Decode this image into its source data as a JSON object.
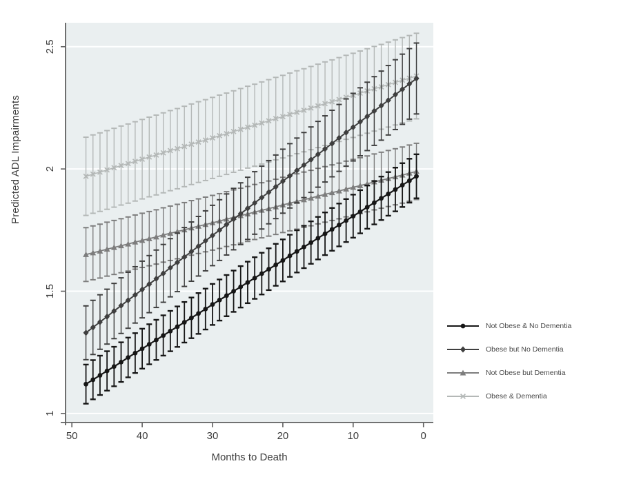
{
  "figure": {
    "background": "#ffffff",
    "plot_background": "#eaeff0",
    "gridline_color": "#ffffff",
    "axis_color": "#5f5f5f",
    "tick_text_color": "#3d3d3d"
  },
  "chart_data": {
    "type": "line",
    "title": "",
    "xlabel": "Months to Death",
    "ylabel": "Predicted ADL Impairments",
    "x_axis_reversed": true,
    "grid": "horizontal white gridlines at each y tick",
    "legend_position": "outside-right",
    "xlim": [
      50.9,
      -1.4
    ],
    "ylim": [
      0.963,
      2.598
    ],
    "x_ticks": [
      50,
      40,
      30,
      20,
      10,
      0
    ],
    "x_tick_labels": [
      "50",
      "40",
      "30",
      "20",
      "10",
      "0"
    ],
    "y_ticks": [
      1,
      1.5,
      2,
      2.5
    ],
    "y_tick_labels": [
      "1",
      "1.5",
      "2",
      "2.5"
    ],
    "months": [
      48,
      47,
      46,
      45,
      44,
      43,
      42,
      41,
      40,
      39,
      38,
      37,
      36,
      35,
      34,
      33,
      32,
      31,
      30,
      29,
      28,
      27,
      26,
      25,
      24,
      23,
      22,
      21,
      20,
      19,
      18,
      17,
      16,
      15,
      14,
      13,
      12,
      11,
      10,
      9,
      8,
      7,
      6,
      5,
      4,
      3,
      2,
      1
    ],
    "series": [
      {
        "name": "Not Obese & No Dementia",
        "marker": "circle",
        "color": "#161616",
        "line_width": 2.2,
        "ci_half_start": 0.08,
        "ci_half_end": 0.09,
        "values": [
          1.12,
          1.138,
          1.156,
          1.174,
          1.192,
          1.21,
          1.229,
          1.247,
          1.265,
          1.283,
          1.301,
          1.319,
          1.337,
          1.355,
          1.373,
          1.391,
          1.409,
          1.427,
          1.446,
          1.464,
          1.482,
          1.5,
          1.518,
          1.536,
          1.554,
          1.572,
          1.59,
          1.608,
          1.626,
          1.645,
          1.663,
          1.681,
          1.699,
          1.717,
          1.735,
          1.753,
          1.771,
          1.789,
          1.807,
          1.825,
          1.844,
          1.862,
          1.88,
          1.898,
          1.916,
          1.934,
          1.952,
          1.97
        ]
      },
      {
        "name": "Obese but No Dementia",
        "marker": "diamond",
        "color": "#3f3f3f",
        "line_width": 2.0,
        "ci_half_start": 0.11,
        "ci_half_end": 0.145,
        "values": [
          1.33,
          1.352,
          1.374,
          1.396,
          1.419,
          1.441,
          1.463,
          1.485,
          1.507,
          1.529,
          1.551,
          1.573,
          1.596,
          1.618,
          1.64,
          1.662,
          1.684,
          1.706,
          1.728,
          1.75,
          1.773,
          1.795,
          1.817,
          1.839,
          1.861,
          1.883,
          1.905,
          1.927,
          1.95,
          1.972,
          1.994,
          2.016,
          2.038,
          2.06,
          2.082,
          2.104,
          2.127,
          2.149,
          2.171,
          2.193,
          2.215,
          2.237,
          2.259,
          2.281,
          2.304,
          2.326,
          2.348,
          2.37
        ]
      },
      {
        "name": "Not Obese but Dementia",
        "marker": "triangle",
        "color": "#7d7d7d",
        "line_width": 1.8,
        "ci_half_start": 0.11,
        "ci_half_end": 0.115,
        "values": [
          1.65,
          1.657,
          1.664,
          1.672,
          1.679,
          1.686,
          1.693,
          1.701,
          1.708,
          1.715,
          1.722,
          1.73,
          1.737,
          1.744,
          1.751,
          1.759,
          1.766,
          1.773,
          1.78,
          1.787,
          1.795,
          1.802,
          1.809,
          1.816,
          1.824,
          1.831,
          1.838,
          1.845,
          1.853,
          1.86,
          1.867,
          1.874,
          1.881,
          1.889,
          1.896,
          1.903,
          1.91,
          1.918,
          1.925,
          1.932,
          1.939,
          1.947,
          1.954,
          1.961,
          1.968,
          1.975,
          1.983,
          1.99
        ]
      },
      {
        "name": "Obese & Dementia",
        "marker": "x",
        "color": "#b4b8b7",
        "line_width": 1.5,
        "ci_half_start": 0.16,
        "ci_half_end": 0.175,
        "values": [
          1.97,
          1.979,
          1.987,
          1.996,
          2.005,
          2.014,
          2.022,
          2.031,
          2.04,
          2.049,
          2.057,
          2.066,
          2.075,
          2.083,
          2.092,
          2.101,
          2.11,
          2.118,
          2.127,
          2.136,
          2.144,
          2.153,
          2.162,
          2.171,
          2.179,
          2.188,
          2.197,
          2.206,
          2.214,
          2.223,
          2.232,
          2.24,
          2.249,
          2.258,
          2.267,
          2.275,
          2.284,
          2.293,
          2.301,
          2.31,
          2.319,
          2.328,
          2.336,
          2.345,
          2.354,
          2.363,
          2.371,
          2.38
        ]
      }
    ]
  }
}
